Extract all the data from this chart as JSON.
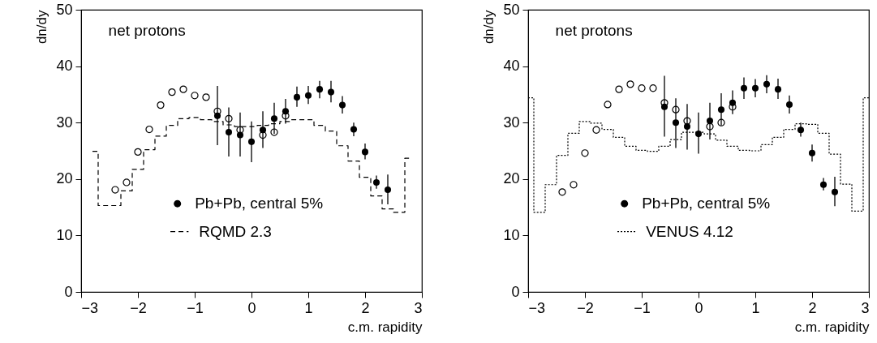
{
  "chart_data": [
    {
      "type": "scatter",
      "xlabel": "c.m. rapidity",
      "ylabel": "dn/dy",
      "annotations": [
        "net protons"
      ],
      "xlim": [
        -3,
        3
      ],
      "ylim": [
        0,
        50
      ],
      "xticks": [
        -3,
        -2,
        -1,
        0,
        1,
        2,
        3
      ],
      "yticks": [
        0,
        10,
        20,
        30,
        40,
        50
      ],
      "grid": false,
      "legend": "bottom",
      "series": [
        {
          "type": "step",
          "name": "RQMD 2.3",
          "color": "#000000",
          "line_style": "dashed",
          "x": [
            -2.8,
            -2.6,
            -2.4,
            -2.2,
            -2.0,
            -1.8,
            -1.6,
            -1.4,
            -1.2,
            -1.0,
            -0.8,
            -0.6,
            -0.4,
            -0.2,
            0,
            0.2,
            0.4,
            0.6,
            0.8,
            1.0,
            1.2,
            1.4,
            1.6,
            1.8,
            2.0,
            2.2,
            2.4,
            2.6,
            2.8
          ],
          "values": [
            24.9,
            15.3,
            15.3,
            17.9,
            21.7,
            25.2,
            27.6,
            29.5,
            30.7,
            30.9,
            30.5,
            30.2,
            29.6,
            29.3,
            29.3,
            29.5,
            29.8,
            30.2,
            30.5,
            30.5,
            29.5,
            28.5,
            25.9,
            23.2,
            20.3,
            17.0,
            14.7,
            14.1,
            23.7
          ]
        },
        {
          "color": "#000000",
          "marker": "circle",
          "x": [
            -2.4,
            -2.2,
            -2.0,
            -1.8,
            -1.6,
            -1.4,
            -1.2,
            -1.0,
            -0.8,
            -0.6,
            -0.4,
            -0.2,
            0.2,
            0.4,
            0.6
          ],
          "values": [
            18.1,
            19.4,
            24.8,
            28.8,
            33.1,
            35.4,
            35.9,
            34.8,
            34.5,
            32.0,
            30.7,
            28.7,
            27.8,
            28.3,
            31.2
          ]
        },
        {
          "name": "Pb+Pb, central 5%",
          "color": "#000000",
          "marker": "circle",
          "x": [
            -0.6,
            -0.4,
            -0.2,
            0,
            0.2,
            0.4,
            0.6,
            0.8,
            1.0,
            1.2,
            1.4,
            1.6,
            1.8,
            2.0,
            2.2,
            2.4
          ],
          "values": [
            31.2,
            28.3,
            27.8,
            26.6,
            28.7,
            30.7,
            32.0,
            34.5,
            34.8,
            35.9,
            35.4,
            33.1,
            28.8,
            24.8,
            19.4,
            18.1
          ],
          "errors": [
            [
              26,
              36.5
            ],
            [
              24,
              32.7
            ],
            [
              24,
              31.8
            ],
            [
              23,
              30.2
            ],
            [
              25.5,
              32
            ],
            [
              28,
              33.5
            ],
            [
              29.8,
              34.2
            ],
            [
              32.8,
              36.4
            ],
            [
              33.3,
              36.5
            ],
            [
              34.3,
              37.4
            ],
            [
              33.6,
              37.4
            ],
            [
              31.6,
              34.7
            ],
            [
              27.6,
              30
            ],
            [
              23.5,
              26.3
            ],
            [
              18.3,
              20.6
            ],
            [
              15.5,
              20.8
            ]
          ]
        }
      ]
    },
    {
      "type": "scatter",
      "xlabel": "c.m. rapidity",
      "ylabel": "dn/dy",
      "annotations": [
        "net protons"
      ],
      "xlim": [
        -3,
        3
      ],
      "ylim": [
        0,
        50
      ],
      "xticks": [
        -3,
        -2,
        -1,
        0,
        1,
        2,
        3
      ],
      "yticks": [
        0,
        10,
        20,
        30,
        40,
        50
      ],
      "grid": false,
      "legend": "bottom",
      "series": [
        {
          "type": "step",
          "name": "VENUS 4.12",
          "color": "#000000",
          "line_style": "dotted",
          "x": [
            -3.0,
            -2.8,
            -2.6,
            -2.4,
            -2.2,
            -2.0,
            -1.8,
            -1.6,
            -1.4,
            -1.2,
            -1.0,
            -0.8,
            -0.6,
            -0.4,
            -0.2,
            0,
            0.2,
            0.4,
            0.6,
            0.8,
            1.0,
            1.2,
            1.4,
            1.6,
            1.8,
            2.0,
            2.2,
            2.4,
            2.6,
            2.8,
            3.0
          ],
          "values": [
            34.4,
            14.1,
            19.0,
            24.2,
            28.1,
            30.2,
            29.9,
            28.8,
            27.4,
            25.8,
            25.1,
            24.9,
            25.8,
            27.0,
            28.3,
            28.3,
            28.0,
            26.9,
            25.8,
            25.1,
            25.0,
            26.1,
            27.4,
            28.8,
            29.8,
            29.7,
            28.1,
            24.4,
            19.1,
            14.3,
            34.4
          ]
        },
        {
          "color": "#000000",
          "marker": "circle",
          "x": [
            -2.4,
            -2.2,
            -2.0,
            -1.8,
            -1.6,
            -1.4,
            -1.2,
            -1.0,
            -0.8,
            -0.6,
            -0.4,
            -0.2,
            0.2,
            0.4,
            0.6
          ],
          "values": [
            17.7,
            19.0,
            24.6,
            28.7,
            33.2,
            35.9,
            36.8,
            36.1,
            36.1,
            33.5,
            32.3,
            30.3,
            29.3,
            30.0,
            32.8
          ]
        },
        {
          "name": "Pb+Pb, central 5%",
          "color": "#000000",
          "marker": "circle",
          "x": [
            -0.6,
            -0.4,
            -0.2,
            0,
            0.2,
            0.4,
            0.6,
            0.8,
            1.0,
            1.2,
            1.4,
            1.6,
            1.8,
            2.0,
            2.2,
            2.4
          ],
          "values": [
            32.8,
            30.0,
            29.3,
            28.0,
            30.3,
            32.3,
            33.5,
            36.1,
            36.1,
            36.8,
            35.9,
            33.2,
            28.7,
            24.6,
            19.0,
            17.7
          ],
          "errors": [
            [
              27.5,
              38.3
            ],
            [
              25.5,
              34.3
            ],
            [
              25.2,
              33.3
            ],
            [
              24.5,
              31.8
            ],
            [
              27,
              33.5
            ],
            [
              29.5,
              35.2
            ],
            [
              31.5,
              35.7
            ],
            [
              34.2,
              38
            ],
            [
              34.5,
              37.7
            ],
            [
              35.2,
              38.4
            ],
            [
              34.2,
              37.8
            ],
            [
              31.6,
              34.8
            ],
            [
              27.5,
              30
            ],
            [
              23.1,
              26.1
            ],
            [
              18,
              20.2
            ],
            [
              15.2,
              20.4
            ]
          ]
        }
      ]
    }
  ]
}
